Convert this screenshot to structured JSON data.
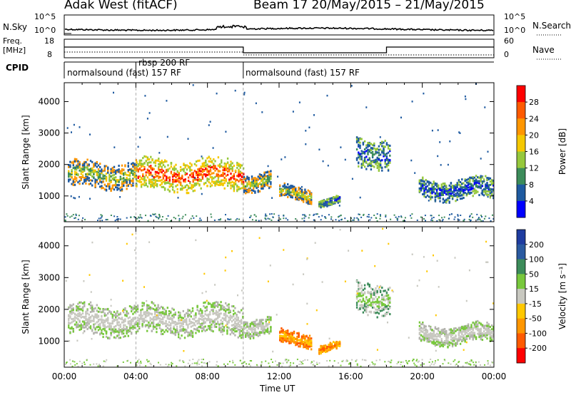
{
  "header": {
    "station": "Adak West (fitACF)",
    "beam_date": "Beam 17 20/May/2015 – 21/May/2015"
  },
  "strips": {
    "nsky_label": "N.Sky",
    "nsky_ticks": [
      "10^5",
      "10^0"
    ],
    "nsearch_label": "N.Search",
    "nsearch_ticks": [
      "10^5",
      "10^0"
    ],
    "freq_label_1": "Freq.",
    "freq_label_2": "[MHz]",
    "freq_ticks": [
      "18",
      "8"
    ],
    "nave_label": "Nave",
    "nave_ticks": [
      "60",
      "0"
    ],
    "cpid_label": "CPID",
    "cpid_segments": [
      {
        "label": "normalsound (fast) 157 RF",
        "start_hour": 0,
        "end_hour": 10
      },
      {
        "label": "rbsp 200 RF",
        "start_hour": 4,
        "end_hour": 4.2
      },
      {
        "label": "normalsound (fast) 157 RF",
        "start_hour": 10,
        "end_hour": 24
      }
    ],
    "freq_steps": [
      {
        "start_hour": 0,
        "end_hour": 10,
        "level": "high"
      },
      {
        "start_hour": 10,
        "end_hour": 18,
        "level": "low"
      },
      {
        "start_hour": 18,
        "end_hour": 24,
        "level": "high"
      }
    ]
  },
  "chart_data": [
    {
      "type": "heatmap",
      "name": "power-panel",
      "ylabel": "Slant Range [km]",
      "xlabel": "Time UT",
      "xlim": [
        0,
        24
      ],
      "ylim": [
        180,
        4600
      ],
      "y_ticks": [
        1000,
        2000,
        3000,
        4000
      ],
      "x_ticks": [
        "00:00",
        "04:00",
        "08:00",
        "12:00",
        "16:00",
        "20:00",
        "00:00"
      ],
      "colorbar_label": "Power [dB]",
      "colorbar_ticks": [
        "28",
        "24",
        "20",
        "16",
        "12",
        "8",
        "4"
      ],
      "colorbar_colors": [
        "#ff0000",
        "#ff5a00",
        "#ff9600",
        "#f5c800",
        "#96c83c",
        "#3c8c5a",
        "#1e5aa0",
        "#0000ff"
      ],
      "echo_regions": [
        {
          "t_start": 0.2,
          "t_end": 4.0,
          "r_center": 1700,
          "r_width": 420,
          "level": "medium"
        },
        {
          "t_start": 4.0,
          "t_end": 10.0,
          "r_center": 1700,
          "r_width": 500,
          "level": "high"
        },
        {
          "t_start": 10.0,
          "t_end": 11.5,
          "r_center": 1500,
          "r_width": 280,
          "level": "medium"
        },
        {
          "t_start": 12.0,
          "t_end": 13.8,
          "r_center": 1100,
          "r_width": 220,
          "level": "medium"
        },
        {
          "t_start": 14.2,
          "t_end": 15.4,
          "r_center": 850,
          "r_width": 120,
          "level": "low"
        },
        {
          "t_start": 16.3,
          "t_end": 18.2,
          "r_center": 2400,
          "r_width": 500,
          "level": "low"
        },
        {
          "t_start": 19.8,
          "t_end": 24.0,
          "r_center": 1250,
          "r_width": 320,
          "level": "low"
        }
      ]
    },
    {
      "type": "heatmap",
      "name": "velocity-panel",
      "ylabel": "Slant Range [km]",
      "xlabel": "Time UT",
      "xlim": [
        0,
        24
      ],
      "ylim": [
        180,
        4600
      ],
      "y_ticks": [
        1000,
        2000,
        3000,
        4000
      ],
      "x_ticks": [
        "00:00",
        "04:00",
        "08:00",
        "12:00",
        "16:00",
        "20:00",
        "00:00"
      ],
      "colorbar_label": "Velocity [m s⁻¹]",
      "colorbar_ticks": [
        "200",
        "100",
        "50",
        "15",
        "-15",
        "-50",
        "-100",
        "-200"
      ],
      "colorbar_colors": [
        "#1e3ca0",
        "#2a5aa0",
        "#3c8c5a",
        "#78c83c",
        "#c8c8c0",
        "#ffc800",
        "#ff9600",
        "#ff5a00",
        "#ff0000"
      ],
      "echo_regions": [
        {
          "t_start": 0.2,
          "t_end": 10.0,
          "r_center": 1700,
          "r_width": 480,
          "level": "ground"
        },
        {
          "t_start": 10.0,
          "t_end": 11.5,
          "r_center": 1500,
          "r_width": 280,
          "level": "ground"
        },
        {
          "t_start": 12.0,
          "t_end": 13.8,
          "r_center": 1100,
          "r_width": 220,
          "level": "negative"
        },
        {
          "t_start": 14.2,
          "t_end": 15.4,
          "r_center": 850,
          "r_width": 120,
          "level": "strong-negative"
        },
        {
          "t_start": 16.3,
          "t_end": 18.2,
          "r_center": 2400,
          "r_width": 500,
          "level": "positive"
        },
        {
          "t_start": 19.8,
          "t_end": 24.0,
          "r_center": 1250,
          "r_width": 300,
          "level": "ground"
        }
      ]
    }
  ]
}
